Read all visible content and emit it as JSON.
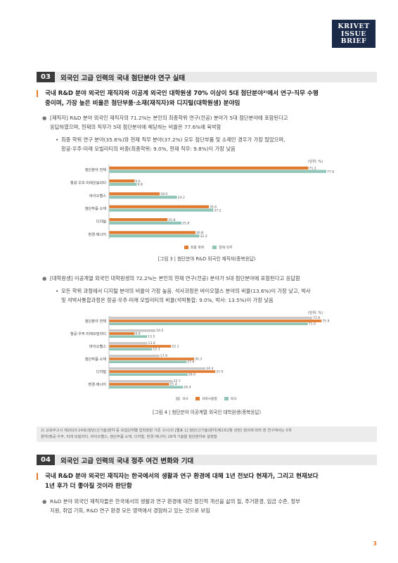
{
  "logo": {
    "line1": "KRIVET",
    "line2": "ISSUE",
    "line3": "BRIEF"
  },
  "section3": {
    "num": "03",
    "title": "외국인 고급 인력의 국내 첨단분야 연구 실태",
    "lead_line1": "국내 R&D 분야 외국인 재직자와 이공계 외국인 대학원생 70% 이상이 5대 첨단분야²⁾에서 연구·직무 수행",
    "lead_line2": "중이며, 가장 높은 비율은 첨단부품·소재(재직자)와 디지털(대학원생) 분야임",
    "bullet1_line1": "[재직자] R&D 분야 외국인 재직자의 71.2%는 본인의 최종학위 연구(전공) 분야가 5대 첨단분야에 포함된다고",
    "bullet1_line2": "응답하였으며, 현재의 직무가 5대 첨단분야에 해당하는 비율은 77.6%에 육박함",
    "sub1_line1": "최종 학위 연구 분야(35.6%)와 현재 직무 분야(37.2%) 모두 첨단부품 및 소재인 경우가 가장 많았으며,",
    "sub1_line2": "항공·우주·미래 모빌리티의 비중(최종학위: 9.0%, 현재 직무: 9.8%)이 가장 낮음",
    "bullet2": "[대학원생] 이공계열 외국인 대학원생의 72.2%는 본인의 현재 연구(전공) 분야가 5대 첨단분야에 포함된다고 응답함",
    "sub2_line1": "모든 학위 과정에서 디지털 분야의 비율이 가장 높음. 석사과정은 바이오헬스 분야의 비율(13.6%)이 가장 낮고, 박사",
    "sub2_line2": "및 석박사통합과정은 항공·우주·미래 모빌리티의 비율(석박통합: 9.0%, 박사: 13.5%)이 가장 낮음"
  },
  "chart_data": [
    {
      "type": "bar",
      "orientation": "horizontal",
      "unit": "(단위: %)",
      "caption": "[그림 3 |  첨단분야 R&D 외국인 재직자(중복응답)",
      "categories": [
        "첨단분야 전체",
        "항공·우주·미래모빌리티",
        "바이오헬스",
        "첨단부품·소재",
        "디지털",
        "환경·에너지"
      ],
      "series": [
        {
          "name": "최종 학위",
          "color": "#e07a2e",
          "values": [
            71.2,
            9.0,
            18.0,
            35.6,
            20.8,
            30.8
          ]
        },
        {
          "name": "현재 직무",
          "color": "#8fc5b7",
          "values": [
            77.6,
            9.8,
            24.2,
            37.2,
            25.8,
            32.2
          ]
        }
      ],
      "xlim": [
        0,
        80
      ]
    },
    {
      "type": "bar",
      "orientation": "horizontal",
      "unit": "(단위: %)",
      "caption": "[그림 4 |  첨단분야 이공계열 외국인 대학원생(중복응답)",
      "categories": [
        "첨단분야 전체",
        "항공·우주·미래모빌리티",
        "바이오헬스",
        "첨단부품·소재",
        "디지털",
        "환경·에너지"
      ],
      "series": [
        {
          "name": "석사",
          "color": "#c8c8c8",
          "values": [
            72.6,
            16.5,
            13.6,
            17.9,
            34.4,
            22.7
          ]
        },
        {
          "name": "석박사통합",
          "color": "#e07a2e",
          "values": [
            75.9,
            9.0,
            22.1,
            30.3,
            37.9,
            21.4
          ]
        },
        {
          "name": "박사",
          "color": "#8fc5b7",
          "values": [
            71.0,
            13.5,
            15.3,
            27.6,
            28.0,
            26.4
          ]
        }
      ],
      "xlim": [
        0,
        80
      ]
    }
  ],
  "footnote": {
    "line1": "2) 교육부고시 제2023-24호(첨단(신기술)분야 등 모집단위별 입학정원 기준 고시)의 [별표 1] 첨단(신기술)분야(제2조2항 관련) 정의에 따라 본 연구에서는 5개",
    "line2": "분야(항공·우주, 미래 모빌리티, 바이오헬스, 첨단부품·소재, 디지털, 환경·에너지) 28개 기술을 첨단분야로 설정함"
  },
  "section4": {
    "num": "04",
    "title": "외국인 고급 인력의 국내 정주 여건 변화와 기대",
    "lead_line1": "국내 R&D 분야 외국인 재직자는 한국에서의 생활과 연구 환경에 대해 1년 전보다 현재가, 그리고 현재보다",
    "lead_line2": "1년 후가 더 좋아질 것이라 판단함",
    "bullet1_line1": "R&D 분야 외국인 재직자들은 한국에서의 생활과 연구 환경에 대한 정진적 개선을 삶의 질, 주거환경, 임금 수준, 정부",
    "bullet1_line2": "지원, 취업 기회, R&D 연구 환경 모든 영역에서 경험하고 있는 것으로 보임"
  },
  "page_number": "3"
}
